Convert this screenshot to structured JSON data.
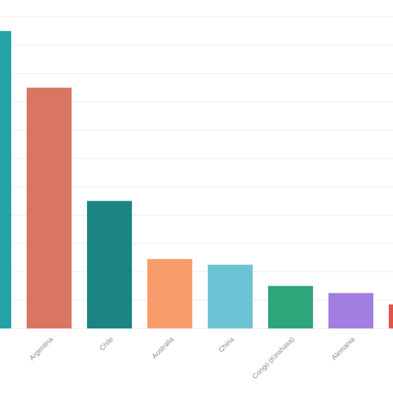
{
  "chart_data": {
    "type": "bar",
    "title": "",
    "xlabel": "",
    "ylabel": "",
    "categories": [
      "",
      "Argentina",
      "Chile",
      "Australia",
      "China",
      "Congo (Kinshasa)",
      "Alemania",
      ""
    ],
    "values": [
      21,
      17,
      9,
      4.9,
      4.5,
      3.0,
      2.5,
      1.7
    ],
    "colors": [
      "#23a3a6",
      "#db7563",
      "#1b8582",
      "#f89c6b",
      "#6bc4d4",
      "#2fa57a",
      "#a07fe0",
      "#e0534a"
    ],
    "ylim": [
      0,
      22
    ],
    "grid": true,
    "gridline_count": 11
  }
}
